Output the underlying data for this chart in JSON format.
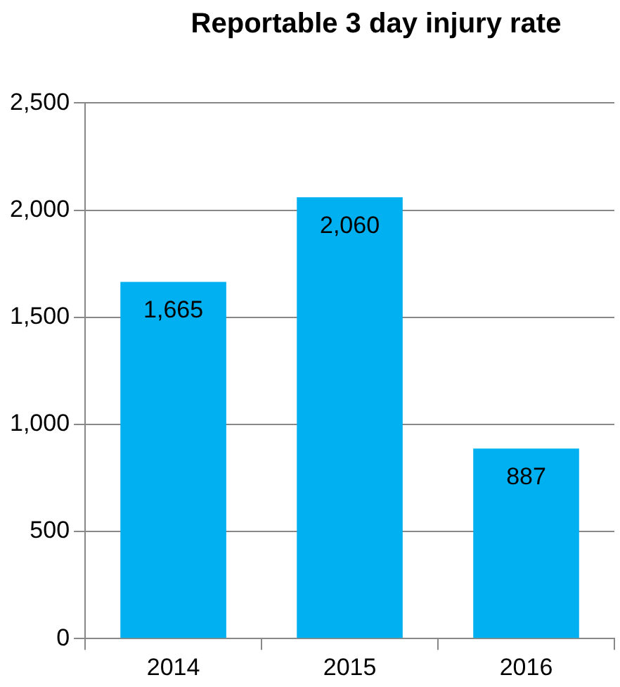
{
  "chart_data": {
    "type": "bar",
    "title": "Reportable 3 day injury rate",
    "categories": [
      "2014",
      "2015",
      "2016"
    ],
    "values": [
      1665,
      2060,
      887
    ],
    "color": "#00b0f0",
    "ylim": [
      0,
      2500
    ],
    "yticks": [
      {
        "value": 0,
        "label": "0"
      },
      {
        "value": 500,
        "label": "500"
      },
      {
        "value": 1000,
        "label": "1,000"
      },
      {
        "value": 1500,
        "label": "1,500"
      },
      {
        "value": 2000,
        "label": "2,000"
      },
      {
        "value": 2500,
        "label": "2,500"
      }
    ],
    "value_labels": [
      "1,665",
      "2,060",
      "887"
    ],
    "grid": "y",
    "legend": false
  }
}
